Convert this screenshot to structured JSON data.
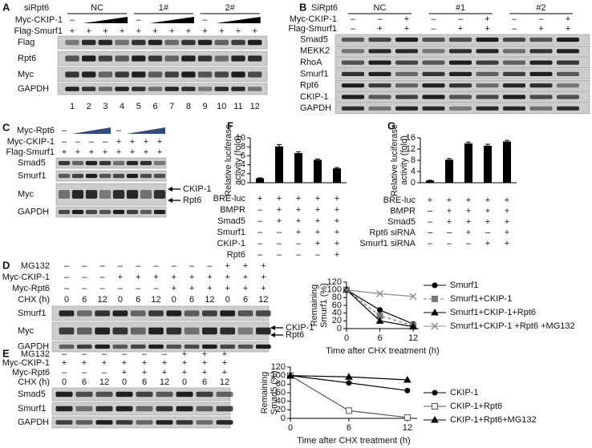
{
  "blots": [
    {
      "label": "A",
      "header": "siRpt6",
      "groups": [
        "NC",
        "1#",
        "2#"
      ],
      "conditions": [
        {
          "name": "Myc-CKIP-1",
          "signs": [
            "–",
            null,
            null,
            null,
            "–",
            null,
            null,
            null,
            "–",
            null,
            null,
            null
          ]
        },
        {
          "name": "Flag-Smurf1",
          "signs": [
            "+",
            "+",
            "+",
            "+",
            "+",
            "+",
            "+",
            "+",
            "+",
            "+",
            "+",
            "+"
          ]
        }
      ],
      "rows": [
        "Flag",
        "Rpt6",
        "Myc",
        "GAPDH"
      ],
      "lanes": [
        1,
        2,
        3,
        4,
        5,
        6,
        7,
        8,
        9,
        10,
        11,
        12
      ]
    },
    {
      "label": "B",
      "header": "SiRpt6",
      "groups": [
        "NC",
        "#1",
        "#2"
      ],
      "conditions": [
        {
          "name": "Myc-CKIP-1",
          "signs": [
            "–",
            "–",
            "+",
            "–",
            "–",
            "+",
            "–",
            "–",
            "+"
          ]
        },
        {
          "name": "Flag-Smurf1",
          "signs": [
            "–",
            "+",
            "+",
            "–",
            "+",
            "+",
            "–",
            "+",
            "+"
          ]
        }
      ],
      "rows": [
        "Smad5",
        "MEKK2",
        "RhoA",
        "Smurf1",
        "Rpt6",
        "CKIP-1",
        "GAPDH"
      ]
    },
    {
      "label": "C",
      "ramp_color": "#2e4a86",
      "conditions": [
        {
          "name": "Myc-Rpt6",
          "signs": [
            "–",
            null,
            null,
            null,
            "–",
            null,
            null,
            null
          ]
        },
        {
          "name": "Myc-CKIP-1",
          "signs": [
            "–",
            "–",
            "–",
            "–",
            "+",
            "+",
            "+",
            "+"
          ]
        },
        {
          "name": "Flag-Smurf1",
          "signs": [
            "+",
            "+",
            "+",
            "+",
            "+",
            "+",
            "+",
            "+"
          ]
        }
      ],
      "rows": [
        "Smad5",
        "Smurf1",
        "Myc",
        "GAPDH"
      ],
      "arrows": [
        "CKIP-1",
        "Rpt6"
      ]
    },
    {
      "label": "D",
      "conditions": [
        {
          "name": "MG132",
          "signs": [
            "–",
            "–",
            "–",
            "–",
            "–",
            "–",
            "–",
            "–",
            "–",
            "+",
            "+",
            "+"
          ]
        },
        {
          "name": "Myc-CKIP-1",
          "signs": [
            "–",
            "–",
            "–",
            "+",
            "+",
            "+",
            "+",
            "+",
            "+",
            "+",
            "+",
            "+"
          ]
        },
        {
          "name": "Myc-Rpt6",
          "signs": [
            "–",
            "–",
            "–",
            "–",
            "–",
            "–",
            "+",
            "+",
            "+",
            "+",
            "+",
            "+"
          ]
        },
        {
          "name": "CHX (h)",
          "signs": [
            0,
            6,
            12,
            0,
            6,
            12,
            0,
            6,
            12,
            0,
            6,
            12
          ]
        }
      ],
      "rows": [
        "Smurf1",
        "Myc",
        "GAPDH"
      ],
      "arrows": [
        "CKIP-1",
        "Rpt6"
      ]
    },
    {
      "label": "E",
      "conditions": [
        {
          "name": "MG132",
          "signs": [
            "–",
            "–",
            "–",
            "–",
            "–",
            "–",
            "+",
            "+",
            "+"
          ]
        },
        {
          "name": "Myc-CKIP-1",
          "signs": [
            "+",
            "+",
            "+",
            "+",
            "+",
            "+",
            "+",
            "+",
            "+"
          ]
        },
        {
          "name": "Myc-Rpt6",
          "signs": [
            "–",
            "–",
            "–",
            "+",
            "+",
            "+",
            "+",
            "+",
            "+"
          ]
        },
        {
          "name": "CHX (h)",
          "signs": [
            0,
            6,
            12,
            0,
            6,
            12,
            0,
            6,
            12
          ]
        }
      ],
      "rows": [
        "Smad5",
        "Smurf1",
        "GAPDH"
      ]
    }
  ],
  "chart_data": [
    {
      "panel": "F",
      "type": "bar",
      "ylabel": [
        "Relative luciferase",
        "activity (fold)"
      ],
      "values": [
        1,
        8.1,
        6.6,
        5.1,
        3.2
      ],
      "errors": [
        0.1,
        0.4,
        0.3,
        0.2,
        0.2
      ],
      "color": "#000000",
      "ylim": [
        0,
        10
      ],
      "yticks": [
        0,
        2,
        4,
        6,
        8,
        10
      ],
      "conditions": [
        {
          "name": "BRE-luc",
          "signs": [
            "+",
            "+",
            "+",
            "+",
            "+"
          ]
        },
        {
          "name": "BMPR",
          "signs": [
            "–",
            "+",
            "+",
            "+",
            "+"
          ]
        },
        {
          "name": "Smad5",
          "signs": [
            "–",
            "+",
            "+",
            "+",
            "+"
          ]
        },
        {
          "name": "Smurf1",
          "signs": [
            "–",
            "–",
            "+",
            "+",
            "+"
          ]
        },
        {
          "name": "CKIP-1",
          "signs": [
            "–",
            "–",
            "–",
            "+",
            "+"
          ]
        },
        {
          "name": "Rpt6",
          "signs": [
            "–",
            "–",
            "–",
            "–",
            "+"
          ]
        }
      ]
    },
    {
      "panel": "G",
      "type": "bar",
      "ylabel": [
        "Relative luciferase",
        "activity (fold)"
      ],
      "values": [
        0.8,
        8.2,
        14,
        13.2,
        14.7
      ],
      "errors": [
        0.1,
        0.4,
        0.5,
        0.5,
        0.4
      ],
      "color": "#000000",
      "ylim": [
        0,
        16
      ],
      "yticks": [
        0,
        4,
        8,
        12,
        16
      ],
      "conditions": [
        {
          "name": "BRE-luc",
          "signs": [
            "+",
            "+",
            "+",
            "+",
            "+"
          ]
        },
        {
          "name": "BMPR",
          "signs": [
            "–",
            "+",
            "+",
            "+",
            "+"
          ]
        },
        {
          "name": "Smad5",
          "signs": [
            "–",
            "+",
            "+",
            "+",
            "+"
          ]
        },
        {
          "name": "Rpt6 siRNA",
          "signs": [
            "–",
            "–",
            "+",
            "–",
            "+"
          ]
        },
        {
          "name": "Smurf1 siRNA",
          "signs": [
            "–",
            "–",
            "–",
            "+",
            "+"
          ]
        }
      ]
    },
    {
      "type": "line",
      "ylabel": [
        "Remaining",
        "Smurf1 (%)"
      ],
      "xlabel": "Time after CHX treatment (h)",
      "x": [
        0,
        6,
        12
      ],
      "xlim": [
        0,
        13
      ],
      "xticks": [
        0,
        6,
        12
      ],
      "ylim": [
        0,
        120
      ],
      "yticks": [
        0,
        20,
        40,
        60,
        80,
        100,
        120
      ],
      "series": [
        {
          "name": "Smurf1",
          "color": "#000000",
          "marker": "circle",
          "values": [
            100,
            48,
            12
          ]
        },
        {
          "name": "Smurf1+CKIP-1",
          "color": "#777777",
          "marker": "square",
          "line_style": "dashed",
          "values": [
            100,
            33,
            8
          ]
        },
        {
          "name": "Smurf1+CKIP-1+Rpt6",
          "color": "#000000",
          "marker": "triangle",
          "values": [
            100,
            20,
            5
          ]
        },
        {
          "name": "Smurf1+CKIP-1 +Rpt6 +MG132",
          "color": "#888888",
          "marker": "x",
          "values": [
            100,
            90,
            83
          ]
        }
      ]
    },
    {
      "type": "line",
      "ylabel": [
        "Remaining",
        "Smad5 (%)"
      ],
      "xlabel": "Time after CHX treatment (h)",
      "x": [
        0,
        6,
        12
      ],
      "xlim": [
        0,
        13
      ],
      "xticks": [
        0,
        6,
        12
      ],
      "ylim": [
        0,
        120
      ],
      "yticks": [
        0,
        20,
        40,
        60,
        80,
        100,
        120
      ],
      "series": [
        {
          "name": "CKIP-1",
          "color": "#000000",
          "marker": "circle",
          "values": [
            100,
            83,
            65
          ]
        },
        {
          "name": "CKIP-1+Rpt6",
          "color": "#555555",
          "marker": "open-square",
          "values": [
            100,
            18,
            2
          ]
        },
        {
          "name": "CKIP-1+Rpt6+MG132",
          "color": "#000000",
          "marker": "triangle",
          "values": [
            100,
            97,
            90
          ]
        }
      ]
    }
  ]
}
